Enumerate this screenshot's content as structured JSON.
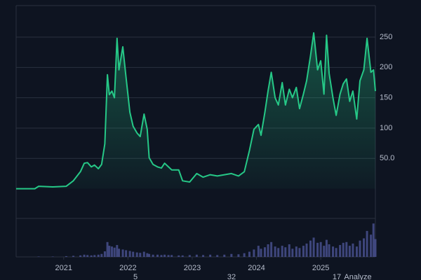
{
  "chart_data": {
    "type": "area",
    "x": [
      2020.26,
      2020.55,
      2020.61,
      2020.83,
      2021.04,
      2021.15,
      2021.26,
      2021.32,
      2021.37,
      2021.43,
      2021.48,
      2021.54,
      2021.59,
      2021.64,
      2021.68,
      2021.71,
      2021.75,
      2021.79,
      2021.83,
      2021.86,
      2021.92,
      2021.97,
      2022.03,
      2022.08,
      2022.14,
      2022.19,
      2022.25,
      2022.3,
      2022.33,
      2022.39,
      2022.46,
      2022.52,
      2022.57,
      2022.63,
      2022.68,
      2022.79,
      2022.85,
      2022.96,
      2023.07,
      2023.17,
      2023.28,
      2023.39,
      2023.5,
      2023.61,
      2023.72,
      2023.81,
      2023.89,
      2023.96,
      2024.03,
      2024.07,
      2024.13,
      2024.18,
      2024.23,
      2024.29,
      2024.34,
      2024.4,
      2024.45,
      2024.51,
      2024.56,
      2024.62,
      2024.67,
      2024.73,
      2024.78,
      2024.84,
      2024.89,
      2024.95,
      2025.0,
      2025.05,
      2025.09,
      2025.13,
      2025.19,
      2025.24,
      2025.3,
      2025.35,
      2025.4,
      2025.45,
      2025.5,
      2025.56,
      2025.61,
      2025.67,
      2025.72,
      2025.78,
      2025.82,
      2025.85
    ],
    "series": [
      {
        "color": "#26c887",
        "values": [
          0,
          0,
          4,
          3,
          4,
          13,
          28,
          42,
          43,
          36,
          39,
          33,
          40,
          74,
          188,
          155,
          161,
          150,
          248,
          196,
          234,
          184,
          126,
          103,
          92,
          86,
          123,
          98,
          51,
          40,
          36,
          34,
          42,
          36,
          31,
          31,
          13,
          11,
          25,
          19,
          23,
          21,
          23,
          25,
          21,
          28,
          63,
          98,
          106,
          88,
          126,
          161,
          192,
          150,
          138,
          175,
          138,
          164,
          150,
          167,
          132,
          156,
          178,
          219,
          257,
          196,
          211,
          156,
          253,
          190,
          150,
          121,
          156,
          173,
          181,
          144,
          161,
          115,
          178,
          196,
          248,
          192,
          196,
          161
        ]
      }
    ],
    "volume": {
      "color": "#4b5394",
      "ylim": [
        0,
        100
      ],
      "values": [
        0,
        0,
        1,
        1,
        2,
        3,
        4,
        6,
        5,
        4,
        5,
        6,
        8,
        15,
        40,
        30,
        28,
        25,
        32,
        22,
        20,
        18,
        16,
        14,
        12,
        11,
        14,
        10,
        8,
        6,
        6,
        5,
        6,
        5,
        5,
        4,
        4,
        5,
        6,
        5,
        6,
        5,
        6,
        8,
        7,
        10,
        14,
        20,
        30,
        22,
        26,
        34,
        40,
        28,
        24,
        30,
        26,
        34,
        22,
        28,
        24,
        30,
        36,
        44,
        52,
        38,
        40,
        30,
        46,
        34,
        28,
        24,
        32,
        38,
        40,
        30,
        36,
        28,
        44,
        50,
        70,
        60,
        90,
        48
      ]
    },
    "xlim": [
      2020.26,
      2025.85
    ],
    "xticks": [
      2021,
      2022,
      2023,
      2024,
      2025
    ],
    "ylim": [
      -49,
      302
    ],
    "yticks": [
      {
        "value": 50,
        "label": "50.0"
      },
      100,
      150,
      200,
      250
    ],
    "grid": true,
    "footer": [
      "5",
      "32",
      "17",
      "Analyze"
    ]
  }
}
